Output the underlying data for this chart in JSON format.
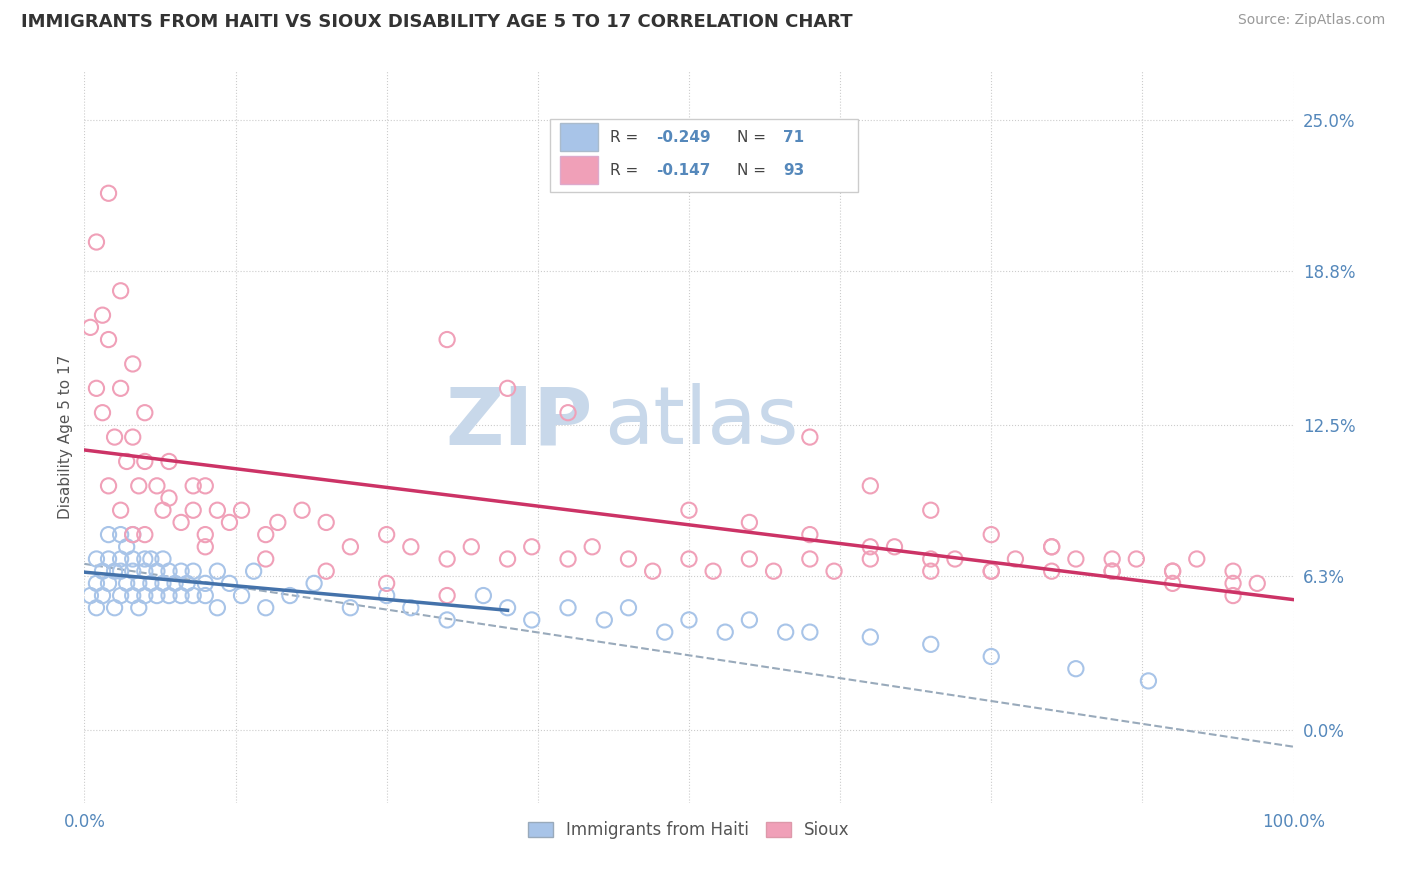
{
  "title": "IMMIGRANTS FROM HAITI VS SIOUX DISABILITY AGE 5 TO 17 CORRELATION CHART",
  "source": "Source: ZipAtlas.com",
  "ylabel": "Disability Age 5 to 17",
  "xlim": [
    0.0,
    1.0
  ],
  "ylim": [
    -0.03,
    0.27
  ],
  "yticks": [
    0.0,
    0.063,
    0.125,
    0.188,
    0.25
  ],
  "ytick_labels": [
    "0.0%",
    "6.3%",
    "12.5%",
    "18.8%",
    "25.0%"
  ],
  "xtick_labels": [
    "0.0%",
    "100.0%"
  ],
  "legend_label1": "Immigrants from Haiti",
  "legend_label2": "Sioux",
  "color_haiti": "#a8c4e8",
  "color_sioux": "#f0a0b8",
  "color_trendline_haiti": "#4472aa",
  "color_trendline_sioux": "#cc3366",
  "color_dashed_trend": "#99aabb",
  "color_grid": "#cccccc",
  "color_title": "#333333",
  "color_right_labels": "#5588bb",
  "watermark_zip": "ZIP",
  "watermark_atlas": "atlas",
  "watermark_color": "#c8d8ea",
  "background_color": "#ffffff",
  "legend_box_color": "#ffffff",
  "legend_border_color": "#cccccc",
  "haiti_x": [
    0.005,
    0.01,
    0.01,
    0.01,
    0.015,
    0.015,
    0.02,
    0.02,
    0.02,
    0.025,
    0.025,
    0.03,
    0.03,
    0.03,
    0.03,
    0.035,
    0.035,
    0.04,
    0.04,
    0.04,
    0.04,
    0.045,
    0.045,
    0.05,
    0.05,
    0.05,
    0.055,
    0.055,
    0.06,
    0.06,
    0.065,
    0.065,
    0.07,
    0.07,
    0.075,
    0.08,
    0.08,
    0.085,
    0.09,
    0.09,
    0.1,
    0.1,
    0.11,
    0.11,
    0.12,
    0.13,
    0.14,
    0.15,
    0.17,
    0.19,
    0.22,
    0.25,
    0.27,
    0.3,
    0.33,
    0.35,
    0.37,
    0.4,
    0.43,
    0.45,
    0.48,
    0.5,
    0.53,
    0.55,
    0.58,
    0.6,
    0.65,
    0.7,
    0.75,
    0.82,
    0.88
  ],
  "haiti_y": [
    0.055,
    0.06,
    0.07,
    0.05,
    0.065,
    0.055,
    0.07,
    0.06,
    0.08,
    0.065,
    0.05,
    0.07,
    0.065,
    0.08,
    0.055,
    0.06,
    0.075,
    0.065,
    0.055,
    0.07,
    0.08,
    0.06,
    0.05,
    0.07,
    0.065,
    0.055,
    0.07,
    0.06,
    0.065,
    0.055,
    0.07,
    0.06,
    0.065,
    0.055,
    0.06,
    0.065,
    0.055,
    0.06,
    0.065,
    0.055,
    0.06,
    0.055,
    0.065,
    0.05,
    0.06,
    0.055,
    0.065,
    0.05,
    0.055,
    0.06,
    0.05,
    0.055,
    0.05,
    0.045,
    0.055,
    0.05,
    0.045,
    0.05,
    0.045,
    0.05,
    0.04,
    0.045,
    0.04,
    0.045,
    0.04,
    0.04,
    0.038,
    0.035,
    0.03,
    0.025,
    0.02
  ],
  "sioux_x": [
    0.005,
    0.01,
    0.01,
    0.015,
    0.015,
    0.02,
    0.02,
    0.025,
    0.03,
    0.03,
    0.035,
    0.04,
    0.04,
    0.045,
    0.05,
    0.05,
    0.06,
    0.065,
    0.07,
    0.08,
    0.09,
    0.1,
    0.1,
    0.12,
    0.13,
    0.15,
    0.16,
    0.18,
    0.2,
    0.22,
    0.25,
    0.27,
    0.3,
    0.32,
    0.35,
    0.37,
    0.4,
    0.42,
    0.45,
    0.47,
    0.5,
    0.52,
    0.55,
    0.57,
    0.6,
    0.62,
    0.65,
    0.67,
    0.7,
    0.72,
    0.75,
    0.77,
    0.8,
    0.82,
    0.85,
    0.87,
    0.9,
    0.92,
    0.95,
    0.97,
    0.3,
    0.35,
    0.4,
    0.6,
    0.65,
    0.7,
    0.75,
    0.8,
    0.85,
    0.9,
    0.95,
    0.5,
    0.55,
    0.6,
    0.65,
    0.7,
    0.75,
    0.8,
    0.85,
    0.9,
    0.95,
    0.1,
    0.15,
    0.2,
    0.25,
    0.3,
    0.02,
    0.03,
    0.04,
    0.05,
    0.07,
    0.09,
    0.11
  ],
  "sioux_y": [
    0.165,
    0.2,
    0.14,
    0.17,
    0.13,
    0.16,
    0.1,
    0.12,
    0.14,
    0.09,
    0.11,
    0.12,
    0.08,
    0.1,
    0.11,
    0.08,
    0.1,
    0.09,
    0.095,
    0.085,
    0.09,
    0.1,
    0.08,
    0.085,
    0.09,
    0.08,
    0.085,
    0.09,
    0.085,
    0.075,
    0.08,
    0.075,
    0.07,
    0.075,
    0.07,
    0.075,
    0.07,
    0.075,
    0.07,
    0.065,
    0.07,
    0.065,
    0.07,
    0.065,
    0.07,
    0.065,
    0.07,
    0.075,
    0.065,
    0.07,
    0.065,
    0.07,
    0.065,
    0.07,
    0.065,
    0.07,
    0.065,
    0.07,
    0.065,
    0.06,
    0.16,
    0.14,
    0.13,
    0.12,
    0.1,
    0.09,
    0.08,
    0.075,
    0.07,
    0.065,
    0.06,
    0.09,
    0.085,
    0.08,
    0.075,
    0.07,
    0.065,
    0.075,
    0.065,
    0.06,
    0.055,
    0.075,
    0.07,
    0.065,
    0.06,
    0.055,
    0.22,
    0.18,
    0.15,
    0.13,
    0.11,
    0.1,
    0.09
  ]
}
